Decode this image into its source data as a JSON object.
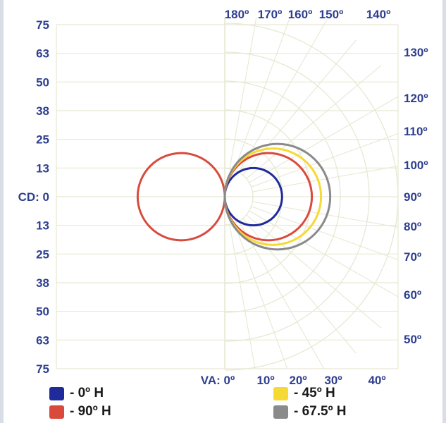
{
  "chart_data": {
    "type": "polar",
    "cd_labels": [
      "75",
      "63",
      "50",
      "38",
      "25",
      "13",
      "CD: 0",
      "13",
      "25",
      "38",
      "50",
      "63",
      "75"
    ],
    "va_labels": [
      "VA: 0º",
      "10º",
      "20º",
      "30º",
      "40º"
    ],
    "top_labels": [
      "180º",
      "170º",
      "160º",
      "150º",
      "140º"
    ],
    "right_labels": [
      "130º",
      "120º",
      "110º",
      "100º",
      "90º",
      "80º",
      "70º",
      "60º",
      "50º"
    ],
    "cd_range": [
      0,
      75
    ],
    "grid": true,
    "legend_position": "bottom",
    "series": [
      {
        "name": "- 0º H",
        "color": "#1f2b9b",
        "circle_center_cd": [
          12.5,
          0
        ],
        "radius_cd": 12.5
      },
      {
        "name": "- 90º H",
        "color": "#d94a3d",
        "circle_center_cd": [
          -19,
          0
        ],
        "radius_cd": 19,
        "mirror": true
      },
      {
        "name": "- 90º H",
        "color": "#d94a3d",
        "circle_center_cd": [
          19,
          0
        ],
        "radius_cd": 19
      },
      {
        "name": "- 45º H",
        "color": "#f7d933",
        "circle_center_cd": [
          21,
          0
        ],
        "radius_cd": 21
      },
      {
        "name": "- 67.5º H",
        "color": "#8a8a8a",
        "circle_center_cd": [
          23,
          0
        ],
        "radius_cd": 23
      }
    ]
  },
  "legend": [
    {
      "label": "- 0º H",
      "color": "#1f2b9b"
    },
    {
      "label": "- 90º H",
      "color": "#d94a3d"
    },
    {
      "label": "- 45º H",
      "color": "#f7d933"
    },
    {
      "label": "- 67.5º H",
      "color": "#8a8a8a"
    }
  ]
}
